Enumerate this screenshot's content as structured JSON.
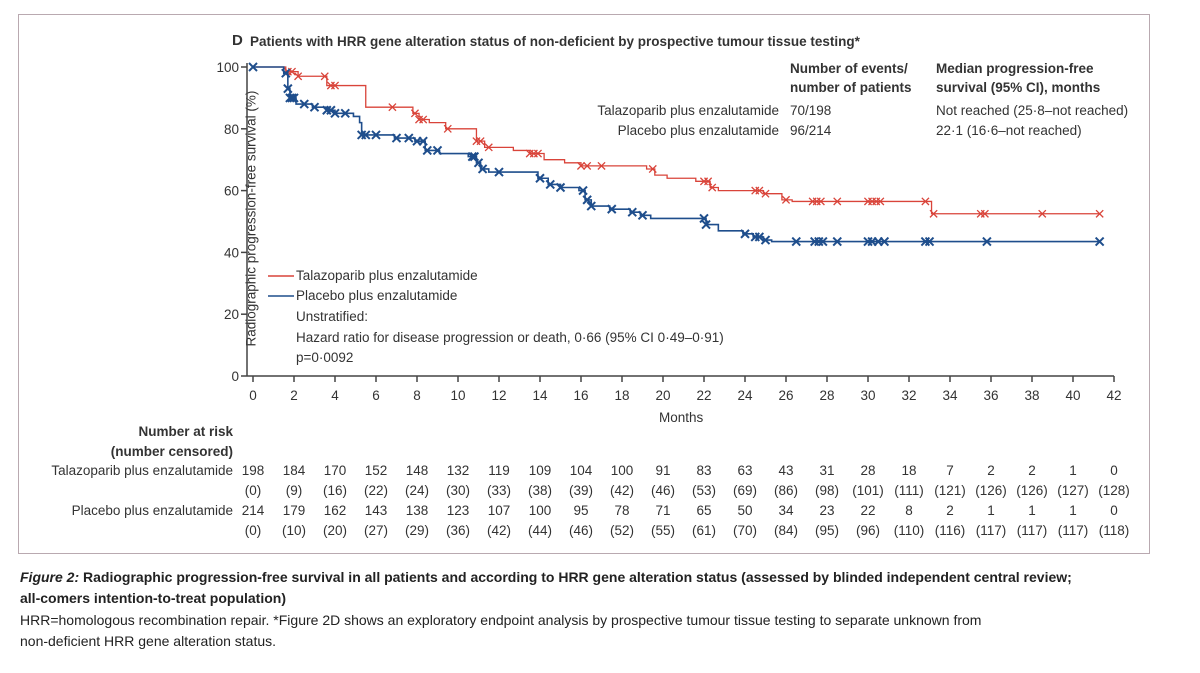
{
  "panel": {
    "letter": "D",
    "title": "Patients with HRR gene alteration status of non-deficient by prospective tumour tissue testing*"
  },
  "summary": {
    "col1_header": [
      "Number of events/",
      "number of patients"
    ],
    "col2_header": [
      "Median progression-free",
      "survival (95% CI), months"
    ],
    "rows": [
      {
        "label": "Talazoparib plus enzalutamide",
        "events": "70/198",
        "median": "Not reached (25·8–not reached)"
      },
      {
        "label": "Placebo plus enzalutamide",
        "events": "96/214",
        "median": "22·1 (16·6–not reached)"
      }
    ]
  },
  "annotation": {
    "line1": "Unstratified:",
    "line2": "Hazard ratio for disease progression or death, 0·66 (95% CI 0·49–0·91)",
    "line3": "p=0·0092"
  },
  "chart_data": {
    "type": "line",
    "subtype": "kaplan-meier step",
    "xlabel": "Months",
    "ylabel": "Radiographic progression-free survival (%)",
    "xlim": [
      0,
      42
    ],
    "ylim": [
      0,
      100
    ],
    "xticks": [
      0,
      2,
      4,
      6,
      8,
      10,
      12,
      14,
      16,
      18,
      20,
      22,
      24,
      26,
      28,
      30,
      32,
      34,
      36,
      38,
      40,
      42
    ],
    "yticks": [
      0,
      20,
      40,
      60,
      80,
      100
    ],
    "grid": false,
    "legend_position": "bottom-left",
    "series": [
      {
        "name": "Talazoparib plus enzalutamide",
        "color": "#d9443a",
        "steps": [
          [
            0,
            100
          ],
          [
            1.6,
            98.5
          ],
          [
            2.2,
            97
          ],
          [
            3.6,
            94
          ],
          [
            5.5,
            87
          ],
          [
            7.8,
            85
          ],
          [
            8.1,
            83
          ],
          [
            8.6,
            82
          ],
          [
            9.4,
            80
          ],
          [
            10.9,
            76
          ],
          [
            11.3,
            74
          ],
          [
            12.7,
            73
          ],
          [
            13.5,
            72
          ],
          [
            14.2,
            70
          ],
          [
            15.2,
            69
          ],
          [
            16,
            68
          ],
          [
            19.2,
            67
          ],
          [
            19.6,
            65
          ],
          [
            20.2,
            64
          ],
          [
            21.6,
            63
          ],
          [
            22.3,
            61
          ],
          [
            22.7,
            60
          ],
          [
            24.9,
            59
          ],
          [
            25.8,
            57
          ],
          [
            26.3,
            56.5
          ],
          [
            33.1,
            52.5
          ]
        ],
        "end": 41.3,
        "censored": [
          1.7,
          1.9,
          2.2,
          3.5,
          3.8,
          4,
          6.8,
          7.9,
          8.1,
          8.3,
          9.5,
          10.9,
          11.1,
          11.5,
          13.5,
          13.7,
          13.9,
          16,
          16.3,
          17,
          19.5,
          22,
          22.2,
          22.4,
          24.5,
          24.7,
          25,
          26,
          27.3,
          27.5,
          27.7,
          28.5,
          30,
          30.2,
          30.4,
          30.6,
          32.8,
          33.2,
          35.5,
          35.7,
          38.5,
          41.3
        ]
      },
      {
        "name": "Placebo plus enzalutamide",
        "color": "#1f4e8c",
        "steps": [
          [
            0,
            100
          ],
          [
            1.5,
            98
          ],
          [
            1.7,
            93
          ],
          [
            1.8,
            90
          ],
          [
            2.1,
            88
          ],
          [
            2.9,
            87
          ],
          [
            3.6,
            86
          ],
          [
            4,
            85
          ],
          [
            4.9,
            84
          ],
          [
            5.2,
            82
          ],
          [
            5.3,
            78
          ],
          [
            6.9,
            77
          ],
          [
            7.9,
            76
          ],
          [
            8.4,
            73
          ],
          [
            9.1,
            72
          ],
          [
            10.5,
            71
          ],
          [
            10.9,
            69
          ],
          [
            11.1,
            67
          ],
          [
            11.5,
            66
          ],
          [
            13.9,
            64
          ],
          [
            14.4,
            62
          ],
          [
            15,
            61
          ],
          [
            15.9,
            60
          ],
          [
            16.2,
            57
          ],
          [
            16.5,
            55
          ],
          [
            17.4,
            54
          ],
          [
            18.4,
            53
          ],
          [
            18.9,
            52
          ],
          [
            19.4,
            51
          ],
          [
            22.1,
            49
          ],
          [
            22.7,
            47
          ],
          [
            23.9,
            46
          ],
          [
            24.4,
            45
          ],
          [
            24.9,
            44
          ],
          [
            25.3,
            43.5
          ]
        ],
        "end": 41.3,
        "censored": [
          0,
          1.6,
          1.7,
          1.8,
          1.9,
          2,
          2.5,
          3,
          3.6,
          3.8,
          4,
          4.5,
          5.3,
          5.5,
          6,
          7,
          7.6,
          8,
          8.3,
          8.5,
          9,
          10.7,
          10.8,
          11,
          11.2,
          12,
          14,
          14.5,
          15,
          16.1,
          16.3,
          16.5,
          17.5,
          18.5,
          19,
          22,
          22.1,
          24,
          24.5,
          24.7,
          25,
          26.5,
          27.4,
          27.6,
          27.8,
          28.5,
          30,
          30.2,
          30.5,
          30.8,
          32.8,
          33,
          35.8,
          41.3
        ]
      }
    ]
  },
  "risk_table": {
    "header": [
      "Number at risk",
      "(number censored)"
    ],
    "rows": [
      {
        "label": "Talazoparib plus enzalutamide",
        "at_risk": [
          "198",
          "184",
          "170",
          "152",
          "148",
          "132",
          "119",
          "109",
          "104",
          "100",
          "91",
          "83",
          "63",
          "43",
          "31",
          "28",
          "18",
          "7",
          "2",
          "2",
          "1",
          "0"
        ],
        "censored": [
          "(0)",
          "(9)",
          "(16)",
          "(22)",
          "(24)",
          "(30)",
          "(33)",
          "(38)",
          "(39)",
          "(42)",
          "(46)",
          "(53)",
          "(69)",
          "(86)",
          "(98)",
          "(101)",
          "(111)",
          "(121)",
          "(126)",
          "(126)",
          "(127)",
          "(128)"
        ]
      },
      {
        "label": "Placebo plus enzalutamide",
        "at_risk": [
          "214",
          "179",
          "162",
          "143",
          "138",
          "123",
          "107",
          "100",
          "95",
          "78",
          "71",
          "65",
          "50",
          "34",
          "23",
          "22",
          "8",
          "2",
          "1",
          "1",
          "1",
          "0"
        ],
        "censored": [
          "(0)",
          "(10)",
          "(20)",
          "(27)",
          "(29)",
          "(36)",
          "(42)",
          "(44)",
          "(46)",
          "(52)",
          "(55)",
          "(61)",
          "(70)",
          "(84)",
          "(95)",
          "(96)",
          "(110)",
          "(116)",
          "(117)",
          "(117)",
          "(117)",
          "(118)"
        ]
      }
    ]
  },
  "caption": {
    "figure_label": "Figure 2:",
    "title": "Radiographic progression-free survival in all patients and according to HRR gene alteration status (assessed by blinded independent central review;",
    "title2": "all-comers intention-to-treat population)",
    "note1": "HRR=homologous recombination repair. *Figure 2D shows an exploratory endpoint analysis by prospective tumour tissue testing to separate unknown from",
    "note2": "non-deficient HRR gene alteration status."
  }
}
